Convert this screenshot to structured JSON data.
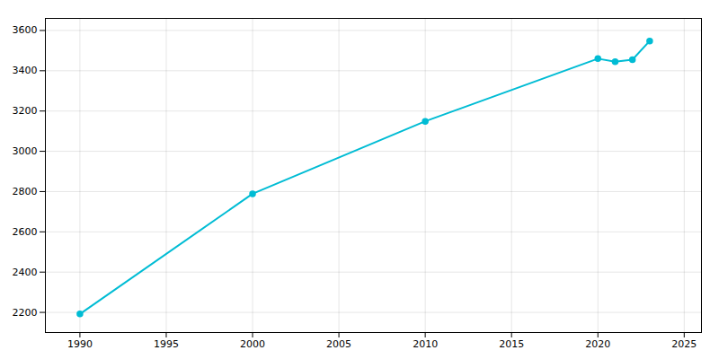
{
  "chart_data": {
    "type": "line",
    "x": [
      1990,
      2000,
      2010,
      2020,
      2021,
      2022,
      2023
    ],
    "values": [
      2192,
      2789,
      3149,
      3460,
      3445,
      3455,
      3548
    ],
    "color": "#00bcd4",
    "marker": "circle",
    "line_style": "solid",
    "xlim": [
      1988,
      2026
    ],
    "ylim": [
      2100,
      3660
    ],
    "xticks": [
      1990,
      1995,
      2000,
      2005,
      2010,
      2015,
      2020,
      2025
    ],
    "yticks": [
      2200,
      2400,
      2600,
      2800,
      3000,
      3200,
      3400,
      3600
    ],
    "grid": true
  }
}
